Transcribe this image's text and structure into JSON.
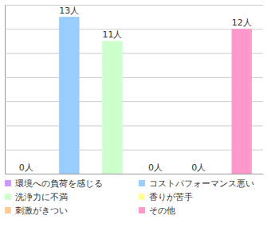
{
  "chart_data": {
    "type": "bar",
    "categories": [
      "環境への負荷を感じる",
      "コストパフォーマンス悪い",
      "洗浄力に不満",
      "香りが苦手",
      "刺激がきつい",
      "その他"
    ],
    "values": [
      0,
      13,
      11,
      0,
      0,
      12
    ],
    "value_labels": [
      "0人",
      "13人",
      "11人",
      "0人",
      "0人",
      "12人"
    ],
    "colors": [
      "#cc99ff",
      "#99ccff",
      "#ccffcc",
      "#ffff99",
      "#ffcc99",
      "#ff99cc"
    ],
    "ylim": [
      0,
      14
    ],
    "yticks": [
      0,
      2,
      4,
      6,
      8,
      10,
      12,
      14
    ],
    "grid": true,
    "data_labels": true,
    "tick_labels": false,
    "legend": "bottom"
  }
}
